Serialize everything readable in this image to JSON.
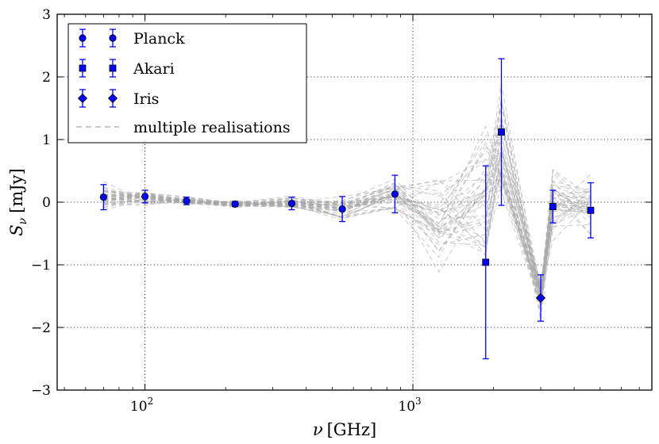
{
  "chart_data": {
    "type": "scatter",
    "xscale": "log",
    "xlim": [
      47,
      7800
    ],
    "ylim": [
      -3,
      3
    ],
    "xlabel": {
      "symbol": "ν",
      "unit": "[GHz]"
    },
    "ylabel": {
      "symbol": "S",
      "subscript": "ν",
      "unit": "[mJy]"
    },
    "yticks": [
      -3,
      -2,
      -1,
      0,
      1,
      2,
      3
    ],
    "ytick_labels": [
      "−3",
      "−2",
      "−1",
      "0",
      "1",
      "2",
      "3"
    ],
    "xticks": [
      {
        "value": 100,
        "base": "10",
        "exp": "2"
      },
      {
        "value": 1000,
        "base": "10",
        "exp": "3"
      }
    ],
    "grid": true,
    "legend_position": "top-left",
    "series": [
      {
        "name": "Planck",
        "marker": "circle",
        "color": "#0000ff",
        "points": [
          {
            "x": 70,
            "y": 0.08,
            "err": 0.2
          },
          {
            "x": 100,
            "y": 0.09,
            "err": 0.1
          },
          {
            "x": 143,
            "y": 0.02,
            "err": 0.06
          },
          {
            "x": 217,
            "y": -0.03,
            "err": 0.04
          },
          {
            "x": 353,
            "y": -0.02,
            "err": 0.1
          },
          {
            "x": 545,
            "y": -0.11,
            "err": 0.2
          },
          {
            "x": 857,
            "y": 0.13,
            "err": 0.3
          }
        ]
      },
      {
        "name": "Akari",
        "marker": "square",
        "color": "#0000ff",
        "points": [
          {
            "x": 1870,
            "y": -0.96,
            "err": 1.54
          },
          {
            "x": 2140,
            "y": 1.12,
            "err": 1.17
          },
          {
            "x": 3330,
            "y": -0.07,
            "err": 0.26
          },
          {
            "x": 4610,
            "y": -0.13,
            "err": 0.44
          }
        ]
      },
      {
        "name": "Iris",
        "marker": "diamond",
        "color": "#0000ff",
        "points": [
          {
            "x": 3000,
            "y": -1.53,
            "err": 0.37
          }
        ]
      }
    ],
    "realisations": {
      "name": "multiple realisations",
      "color": "#a8a8a8",
      "count": 40,
      "x": [
        70,
        100,
        143,
        217,
        353,
        545,
        857,
        1250,
        1870,
        2140,
        3000,
        3330,
        4610
      ],
      "mean": [
        0.08,
        0.09,
        0.02,
        -0.03,
        -0.02,
        -0.11,
        0.13,
        -0.3,
        0.0,
        0.9,
        -1.53,
        0.0,
        -0.05
      ],
      "spread": [
        0.18,
        0.1,
        0.05,
        0.04,
        0.09,
        0.17,
        0.25,
        0.6,
        1.1,
        0.85,
        0.25,
        0.45,
        0.4
      ]
    }
  }
}
